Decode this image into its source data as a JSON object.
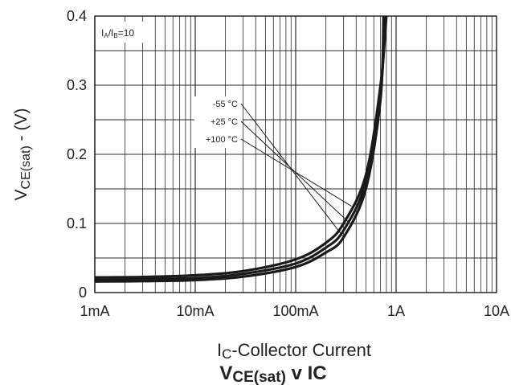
{
  "chart_data": {
    "type": "line",
    "title": {
      "main": "V",
      "sub": "CE(sat)",
      "mid": " v I",
      "end": "C"
    },
    "xlabel": {
      "main": "I",
      "sub": "C",
      "rest": "-Collector Current"
    },
    "ylabel": {
      "main": "V",
      "sub": "CE(sat)",
      "rest": " - (V)"
    },
    "condition": {
      "a": "I",
      "a_sub": "A",
      "sep": "/I",
      "b_sub": "B",
      "rest": "=10"
    },
    "x_scale": "log",
    "xlim": [
      0.001,
      10
    ],
    "ylim": [
      0,
      0.4
    ],
    "x_ticks": [
      {
        "value": 0.001,
        "label": "1mA"
      },
      {
        "value": 0.01,
        "label": "10mA"
      },
      {
        "value": 0.1,
        "label": "100mA"
      },
      {
        "value": 1,
        "label": "1A"
      },
      {
        "value": 10,
        "label": "10A"
      }
    ],
    "y_ticks": [
      {
        "value": 0,
        "label": "0"
      },
      {
        "value": 0.1,
        "label": "0.1"
      },
      {
        "value": 0.2,
        "label": "0.2"
      },
      {
        "value": 0.3,
        "label": "0.3"
      },
      {
        "value": 0.4,
        "label": "0.4"
      }
    ],
    "y_minor_step": 0.05,
    "grid": true,
    "series": [
      {
        "name": "-55 °C",
        "points": [
          [
            0.001,
            0.016
          ],
          [
            0.003,
            0.0165
          ],
          [
            0.01,
            0.018
          ],
          [
            0.03,
            0.023
          ],
          [
            0.1,
            0.037
          ],
          [
            0.2,
            0.058
          ],
          [
            0.3,
            0.08
          ],
          [
            0.5,
            0.15
          ],
          [
            0.7,
            0.28
          ],
          [
            0.75,
            0.4
          ]
        ]
      },
      {
        "name": "+25 °C",
        "points": [
          [
            0.001,
            0.019
          ],
          [
            0.003,
            0.0195
          ],
          [
            0.01,
            0.021
          ],
          [
            0.03,
            0.027
          ],
          [
            0.1,
            0.042
          ],
          [
            0.2,
            0.065
          ],
          [
            0.3,
            0.09
          ],
          [
            0.5,
            0.16
          ],
          [
            0.7,
            0.29
          ],
          [
            0.78,
            0.4
          ]
        ]
      },
      {
        "name": "+100 °C",
        "points": [
          [
            0.001,
            0.022
          ],
          [
            0.003,
            0.0225
          ],
          [
            0.01,
            0.025
          ],
          [
            0.03,
            0.031
          ],
          [
            0.1,
            0.048
          ],
          [
            0.2,
            0.072
          ],
          [
            0.3,
            0.1
          ],
          [
            0.5,
            0.17
          ],
          [
            0.7,
            0.3
          ],
          [
            0.8,
            0.4
          ]
        ]
      }
    ],
    "legend_position": "middle, right of center, with leader lines to curves",
    "colors": {
      "curve": "#1a1a1a",
      "grid": "#2a2a2a",
      "text": "#222222",
      "background": "#ffffff"
    }
  }
}
